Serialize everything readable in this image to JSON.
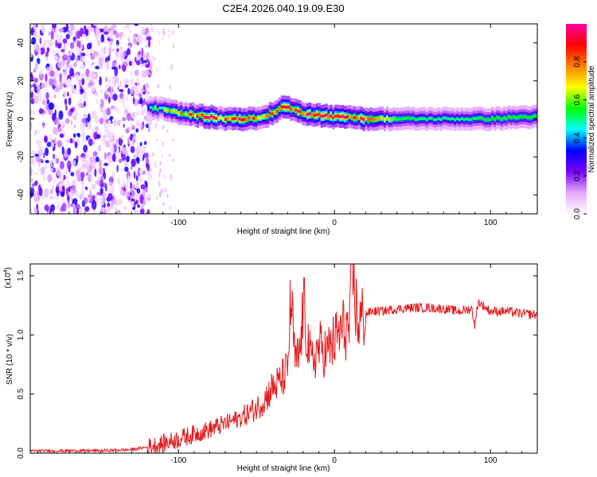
{
  "figure": {
    "title": "C2E4.2026.040.19.09.E30"
  },
  "chart_data": [
    {
      "type": "heatmap",
      "title": "C2E4.2026.040.19.09.E30",
      "xlabel": "Height of straight line (km)",
      "ylabel": "Frequency (Hz)",
      "xlim": [
        -195,
        130
      ],
      "ylim": [
        -50,
        50
      ],
      "xticks": [
        -100,
        0,
        100
      ],
      "xtick_labels": [
        "-100",
        "0",
        "100"
      ],
      "yticks": [
        -40,
        -20,
        0,
        20,
        40
      ],
      "ytick_labels": [
        "-40",
        "-20",
        "0",
        "20",
        "40"
      ],
      "noise_region_x": [
        -195,
        -118
      ],
      "ridge": {
        "description": "narrow high-amplitude band near 0 Hz",
        "x": [
          -120,
          -110,
          -100,
          -90,
          -80,
          -70,
          -60,
          -50,
          -40,
          -35,
          -30,
          -25,
          -20,
          -10,
          0,
          10,
          20,
          40,
          60,
          80,
          100,
          120,
          130
        ],
        "center_hz": [
          6,
          5,
          3,
          2,
          1,
          0,
          0,
          0,
          3,
          6,
          6,
          4,
          3,
          2,
          1,
          1,
          0,
          0,
          0,
          0,
          0,
          1,
          1
        ],
        "amplitude": [
          0.4,
          0.6,
          0.7,
          0.8,
          0.85,
          0.8,
          0.85,
          0.8,
          0.8,
          0.85,
          0.85,
          0.85,
          0.85,
          0.9,
          0.9,
          0.9,
          0.85,
          0.55,
          0.5,
          0.5,
          0.55,
          0.55,
          0.55
        ]
      },
      "colorbar": {
        "label": "Normalized spectral amplitude",
        "range": [
          0,
          1
        ],
        "ticks": [
          0.0,
          0.2,
          0.4,
          0.6,
          0.8
        ],
        "tick_labels": [
          "0.0",
          "0.2",
          "0.4",
          "0.6",
          "0.8"
        ],
        "colors": [
          "#ffffff",
          "#e5a8ff",
          "#7a00ff",
          "#0000ff",
          "#00ffff",
          "#00ff00",
          "#ffff00",
          "#ff8000",
          "#ff0000",
          "#ff00a0"
        ]
      }
    },
    {
      "type": "line",
      "xlabel": "Height of straight line (km)",
      "ylabel": "SNR (10 * v/v)",
      "scale_label_prefix": "(x10",
      "scale_label_exp": "4",
      "scale_label_suffix": ")",
      "xlim": [
        -195,
        130
      ],
      "ylim": [
        0,
        1.6
      ],
      "xticks": [
        -100,
        0,
        100
      ],
      "xtick_labels": [
        "-100",
        "0",
        "100"
      ],
      "yticks": [
        0,
        0.5,
        1.0,
        1.5
      ],
      "ytick_labels": [
        "0.0",
        "0.5",
        "1.0",
        "1.5"
      ],
      "series": [
        {
          "name": "SNR",
          "color": "#e41a1c",
          "x": [
            -195,
            -170,
            -150,
            -130,
            -120,
            -110,
            -100,
            -90,
            -80,
            -70,
            -60,
            -50,
            -45,
            -40,
            -35,
            -30,
            -28,
            -25,
            -22,
            -20,
            -15,
            -10,
            -5,
            0,
            5,
            10,
            11,
            15,
            20,
            25,
            30,
            40,
            50,
            60,
            70,
            80,
            88,
            90,
            92,
            100,
            110,
            120,
            130
          ],
          "y": [
            0.02,
            0.02,
            0.02,
            0.03,
            0.05,
            0.08,
            0.12,
            0.16,
            0.2,
            0.25,
            0.3,
            0.38,
            0.45,
            0.55,
            0.6,
            0.7,
            1.3,
            0.75,
            0.85,
            1.25,
            0.75,
            0.9,
            0.85,
            0.95,
            1.05,
            1.05,
            1.58,
            1.1,
            1.18,
            1.2,
            1.2,
            1.22,
            1.23,
            1.23,
            1.22,
            1.2,
            1.22,
            1.08,
            1.28,
            1.2,
            1.2,
            1.18,
            1.17
          ]
        }
      ]
    }
  ]
}
